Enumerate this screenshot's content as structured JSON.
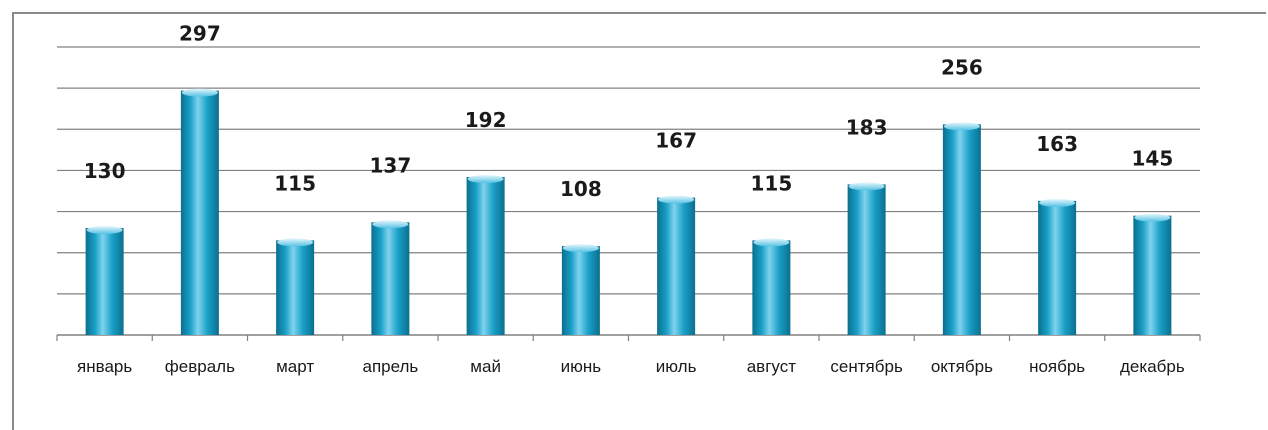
{
  "chart_data": {
    "type": "bar",
    "categories": [
      "январь",
      "февраль",
      "март",
      "апрель",
      "май",
      "июнь",
      "июль",
      "август",
      "сентябрь",
      "октябрь",
      "ноябрь",
      "декабрь"
    ],
    "values": [
      130,
      297,
      115,
      137,
      192,
      108,
      167,
      115,
      183,
      256,
      163,
      145
    ],
    "title": "",
    "xlabel": "",
    "ylabel": "",
    "ylim": [
      0,
      350
    ],
    "grid": true,
    "legend": "none",
    "bar_color": "#1aa0c8",
    "bar_light": "#7fd3ee",
    "bar_dark": "#0a6f8f",
    "grid_color": "#808080"
  }
}
